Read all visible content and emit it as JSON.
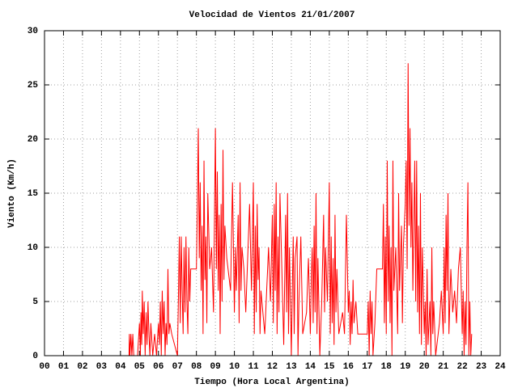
{
  "chart_data": {
    "type": "line",
    "title": "Velocidad de Vientos 21/01/2007",
    "xlabel": "Tiempo (Hora Local Argentina)",
    "ylabel": "Viento (Km/h)",
    "xlim": [
      0,
      24
    ],
    "xticks": [
      {
        "value": 0,
        "label": "00"
      },
      {
        "value": 1,
        "label": "01"
      },
      {
        "value": 2,
        "label": "02"
      },
      {
        "value": 3,
        "label": "03"
      },
      {
        "value": 4,
        "label": "04"
      },
      {
        "value": 5,
        "label": "05"
      },
      {
        "value": 6,
        "label": "06"
      },
      {
        "value": 7,
        "label": "07"
      },
      {
        "value": 8,
        "label": "08"
      },
      {
        "value": 9,
        "label": "09"
      },
      10,
      11,
      12,
      13,
      14,
      15,
      16,
      17,
      18,
      19,
      20,
      21,
      22,
      23,
      24
    ],
    "ylim": [
      0,
      30
    ],
    "yticks": [
      0,
      5,
      10,
      15,
      20,
      25,
      30
    ],
    "grid": true,
    "x": [
      4.45,
      4.47,
      4.5,
      4.55,
      4.6,
      4.65,
      4.7,
      4.9,
      5.0,
      5.05,
      5.08,
      5.12,
      5.15,
      5.2,
      5.25,
      5.3,
      5.35,
      5.4,
      5.45,
      5.5,
      5.55,
      5.6,
      5.7,
      5.8,
      5.9,
      6.0,
      6.05,
      6.1,
      6.15,
      6.2,
      6.25,
      6.3,
      6.35,
      6.4,
      6.45,
      6.5,
      6.55,
      6.6,
      6.7,
      7.0,
      7.05,
      7.1,
      7.15,
      7.2,
      7.25,
      7.3,
      7.35,
      7.4,
      7.45,
      7.5,
      7.55,
      7.6,
      7.65,
      7.7,
      8.0,
      8.05,
      8.1,
      8.15,
      8.2,
      8.25,
      8.3,
      8.35,
      8.4,
      8.45,
      8.5,
      8.55,
      8.6,
      8.7,
      8.8,
      8.9,
      9.0,
      9.05,
      9.1,
      9.15,
      9.2,
      9.25,
      9.3,
      9.35,
      9.4,
      9.45,
      9.5,
      9.6,
      9.8,
      9.9,
      10.0,
      10.05,
      10.1,
      10.2,
      10.25,
      10.3,
      10.35,
      10.4,
      10.5,
      10.6,
      10.8,
      10.9,
      11.0,
      11.05,
      11.1,
      11.15,
      11.2,
      11.25,
      11.3,
      11.35,
      11.4,
      11.5,
      11.6,
      11.8,
      11.9,
      12.0,
      12.05,
      12.1,
      12.15,
      12.2,
      12.25,
      12.3,
      12.35,
      12.4,
      12.5,
      12.6,
      12.7,
      12.75,
      12.8,
      12.85,
      12.9,
      13.0,
      13.05,
      13.1,
      13.15,
      13.2,
      13.3,
      13.35,
      13.4,
      13.5,
      13.6,
      13.8,
      13.9,
      14.0,
      14.05,
      14.1,
      14.15,
      14.2,
      14.25,
      14.3,
      14.35,
      14.4,
      14.5,
      14.6,
      14.7,
      14.75,
      14.8,
      14.9,
      15.0,
      15.05,
      15.1,
      15.15,
      15.2,
      15.25,
      15.3,
      15.35,
      15.4,
      15.5,
      15.7,
      15.8,
      15.9,
      16.0,
      16.05,
      16.1,
      16.15,
      16.2,
      16.25,
      16.3,
      16.4,
      16.5,
      17.0,
      17.05,
      17.1,
      17.15,
      17.2,
      17.25,
      17.3,
      17.4,
      17.5,
      17.8,
      17.85,
      17.9,
      17.95,
      18.0,
      18.05,
      18.1,
      18.15,
      18.2,
      18.25,
      18.3,
      18.35,
      18.4,
      18.5,
      18.6,
      18.65,
      18.7,
      18.8,
      18.85,
      18.9,
      19.0,
      19.05,
      19.1,
      19.15,
      19.2,
      19.25,
      19.3,
      19.35,
      19.4,
      19.5,
      19.55,
      19.6,
      19.65,
      19.7,
      19.75,
      19.8,
      19.85,
      19.9,
      20.0,
      20.05,
      20.1,
      20.15,
      20.2,
      20.3,
      20.35,
      20.4,
      20.45,
      20.5,
      20.6,
      20.8,
      20.9,
      21.0,
      21.05,
      21.1,
      21.15,
      21.2,
      21.25,
      21.3,
      21.4,
      21.5,
      21.6,
      21.7,
      21.8,
      21.9,
      22.0,
      22.05,
      22.1,
      22.15,
      22.2,
      22.25,
      22.3,
      22.35,
      22.4,
      22.45,
      22.5
    ],
    "series": [
      {
        "color": "#ff0000",
        "values": [
          0,
          2,
          0,
          2,
          0,
          2,
          0,
          0,
          3,
          0,
          4,
          1,
          6,
          2,
          5,
          0,
          4,
          1,
          5,
          2,
          0,
          3,
          0,
          2,
          0,
          3,
          1,
          5,
          0,
          6,
          2,
          5,
          0,
          3,
          1,
          8,
          2,
          3,
          2,
          0,
          5,
          11,
          3,
          11,
          6,
          2,
          10,
          4,
          11,
          5,
          2,
          10,
          5,
          8,
          8,
          14,
          21,
          9,
          16,
          6,
          12,
          2,
          18,
          7,
          11,
          3,
          15,
          8,
          10,
          4,
          21,
          8,
          17,
          6,
          13,
          2,
          14,
          5,
          19,
          7,
          12,
          9,
          6,
          16,
          4,
          10,
          6,
          13,
          3,
          16,
          6,
          10,
          8,
          4,
          14,
          6,
          16,
          2,
          12,
          4,
          14,
          7,
          10,
          2,
          6,
          4,
          2,
          10,
          5,
          13,
          3,
          14,
          6,
          16,
          2,
          11,
          4,
          15,
          8,
          1,
          13,
          4,
          15,
          2,
          10,
          0,
          6,
          11,
          2,
          9,
          11,
          0,
          5,
          11,
          2,
          4,
          9,
          2,
          7,
          10,
          3,
          12,
          4,
          15,
          2,
          9,
          0,
          5,
          13,
          4,
          10,
          5,
          16,
          2,
          11,
          3,
          9,
          1,
          13,
          4,
          8,
          2,
          4,
          2,
          13,
          4,
          6,
          1,
          5,
          2,
          7,
          3,
          5,
          2,
          2,
          5,
          0,
          6,
          2,
          5,
          0,
          3,
          8,
          8,
          14,
          3,
          11,
          2,
          18,
          5,
          12,
          3,
          10,
          0,
          18,
          6,
          10,
          2,
          15,
          6,
          12,
          3,
          10,
          14,
          18,
          8,
          27,
          12,
          21,
          10,
          16,
          6,
          18,
          5,
          18,
          4,
          12,
          2,
          15,
          1,
          10,
          2,
          5,
          0,
          8,
          1,
          5,
          0,
          10,
          2,
          5,
          0,
          3,
          6,
          2,
          10,
          3,
          13,
          6,
          15,
          2,
          8,
          4,
          6,
          3,
          8,
          10,
          2,
          6,
          0,
          5,
          1,
          10,
          16,
          0,
          5,
          0,
          2
        ]
      }
    ]
  }
}
